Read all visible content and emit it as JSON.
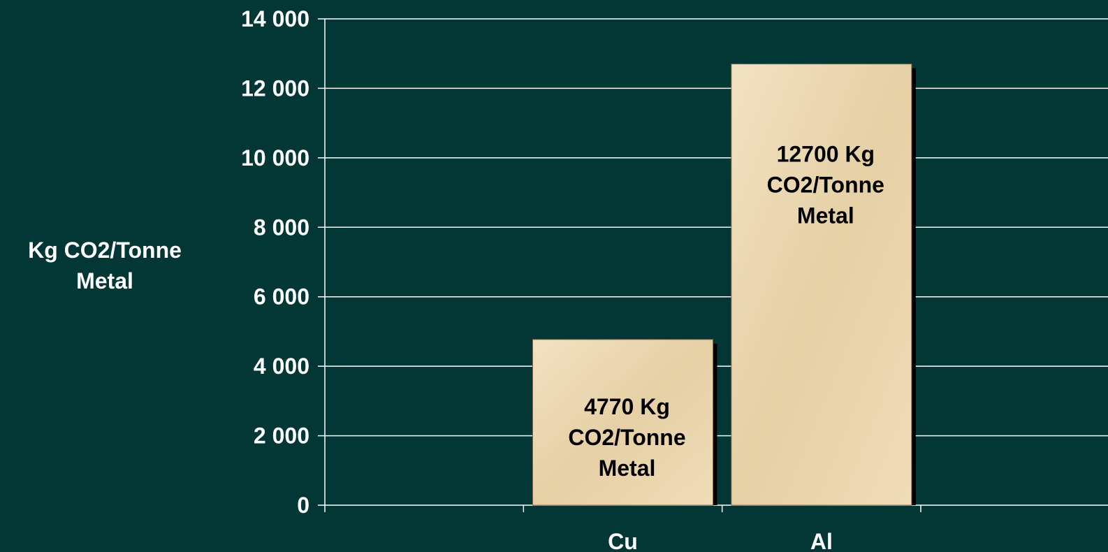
{
  "chart_data": {
    "type": "bar",
    "categories": [
      "",
      "Cu",
      "Al",
      ""
    ],
    "values": [
      null,
      4770,
      12700,
      null
    ],
    "data_labels": [
      null,
      [
        "4770 Kg",
        "CO2/Tonne",
        "Metal"
      ],
      [
        "12700 Kg",
        "CO2/Tonne",
        "Metal"
      ],
      null
    ],
    "ylabel_lines": [
      "Kg CO2/Tonne",
      "Metal"
    ],
    "yticks": [
      "0",
      "2 000",
      "4 000",
      "6 000",
      "8 000",
      "10 000",
      "12 000",
      "14 000"
    ],
    "ylim": [
      0,
      14000
    ],
    "grid": true,
    "colors": {
      "background": "#023736",
      "grid": "#ffffff",
      "bar_fill": "#ecd9b2",
      "bar_shadow": "#000000",
      "text": "#ffffff",
      "label_text": "#000000"
    }
  }
}
